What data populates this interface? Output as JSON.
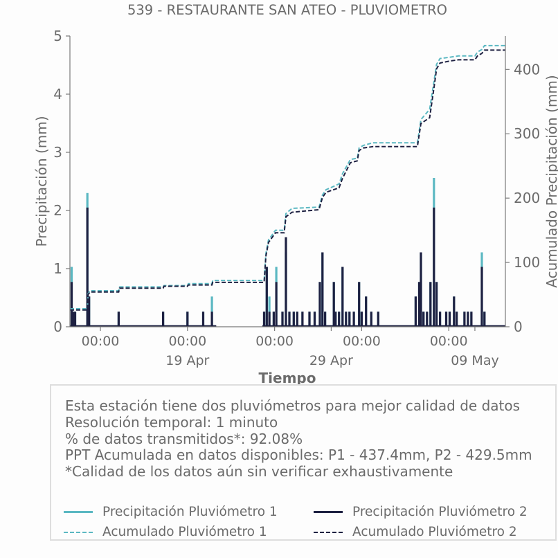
{
  "chart_data": {
    "type": "bar",
    "title": "539 - RESTAURANTE SAN ATEO - PLUVIOMETRO",
    "xlabel": "Tiempo",
    "ylabel_left": "Precipitación (mm)",
    "ylabel_right": "Acumulado Precipitación (mm)",
    "ylim_left": [
      0,
      5
    ],
    "ylim_right": [
      0,
      452
    ],
    "yticks_left": [
      "0",
      "1",
      "2",
      "3",
      "4",
      "5"
    ],
    "yticks_right": [
      "0",
      "100",
      "200",
      "300",
      "400"
    ],
    "yticks_right_values": [
      0,
      100,
      200,
      300,
      400
    ],
    "x_range_days": [
      0,
      50
    ],
    "x_major_ticks": [
      {
        "day": 3.5,
        "label": "00:00"
      },
      {
        "day": 13.5,
        "label": "00:00"
      },
      {
        "day": 23.5,
        "label": "00:00"
      },
      {
        "day": 33.5,
        "label": "00:00"
      },
      {
        "day": 43.5,
        "label": "00:00"
      }
    ],
    "x_date_ticks": [
      {
        "day": 13.5,
        "label": "19 Apr"
      },
      {
        "day": 30.0,
        "label": "29 Apr"
      },
      {
        "day": 46.5,
        "label": "09 May"
      }
    ],
    "x_minor_ticks": [
      3.5,
      13.5,
      23.5,
      30.0,
      33.5,
      43.5,
      46.5
    ],
    "grid": false,
    "legend_position": "bottom",
    "series": [
      {
        "name": "Precipitación Pluviómetro 1",
        "kind": "bar",
        "axis": "left",
        "color": "#5bb8c2",
        "points": [
          [
            0.2,
            1.03
          ],
          [
            0.4,
            0.26
          ],
          [
            0.6,
            0.26
          ],
          [
            2.0,
            2.3
          ],
          [
            2.2,
            0.52
          ],
          [
            5.6,
            0.26
          ],
          [
            10.7,
            0.26
          ],
          [
            13.5,
            0.26
          ],
          [
            15.3,
            0.26
          ],
          [
            16.3,
            0.52
          ],
          [
            22.3,
            0.26
          ],
          [
            22.6,
            1.03
          ],
          [
            22.9,
            0.52
          ],
          [
            23.4,
            0.26
          ],
          [
            23.7,
            1.03
          ],
          [
            24.4,
            0.26
          ],
          [
            24.8,
            1.28
          ],
          [
            25.2,
            0.26
          ],
          [
            25.7,
            0.26
          ],
          [
            26.1,
            0.26
          ],
          [
            26.7,
            0.26
          ],
          [
            27.5,
            0.26
          ],
          [
            28.1,
            0.26
          ],
          [
            28.7,
            0.77
          ],
          [
            29.0,
            1.28
          ],
          [
            29.3,
            0.26
          ],
          [
            30.3,
            0.77
          ],
          [
            30.5,
            0.26
          ],
          [
            30.9,
            0.26
          ],
          [
            31.3,
            1.03
          ],
          [
            31.7,
            0.26
          ],
          [
            32.1,
            0.26
          ],
          [
            32.6,
            0.26
          ],
          [
            33.2,
            0.77
          ],
          [
            33.5,
            0.26
          ],
          [
            34.0,
            0.52
          ],
          [
            34.6,
            0.26
          ],
          [
            35.4,
            0.26
          ],
          [
            39.7,
            0.52
          ],
          [
            40.1,
            0.77
          ],
          [
            40.3,
            1.28
          ],
          [
            40.6,
            0.26
          ],
          [
            41.0,
            0.26
          ],
          [
            41.4,
            0.77
          ],
          [
            41.8,
            2.56
          ],
          [
            42.1,
            0.77
          ],
          [
            42.5,
            0.26
          ],
          [
            43.2,
            0.26
          ],
          [
            43.6,
            0.26
          ],
          [
            44.1,
            0.52
          ],
          [
            44.4,
            0.26
          ],
          [
            45.3,
            0.26
          ],
          [
            45.7,
            0.26
          ],
          [
            46.1,
            0.26
          ],
          [
            47.3,
            1.28
          ],
          [
            47.6,
            0.26
          ]
        ]
      },
      {
        "name": "Precipitación Pluviómetro 2",
        "kind": "bar",
        "axis": "left",
        "color": "#1e2142",
        "points": [
          [
            0.2,
            0.77
          ],
          [
            0.4,
            0.26
          ],
          [
            0.6,
            0.26
          ],
          [
            2.0,
            2.05
          ],
          [
            2.2,
            0.52
          ],
          [
            5.6,
            0.26
          ],
          [
            10.7,
            0.26
          ],
          [
            13.5,
            0.26
          ],
          [
            15.3,
            0.26
          ],
          [
            16.3,
            0.26
          ],
          [
            22.3,
            0.26
          ],
          [
            22.6,
            1.03
          ],
          [
            22.9,
            0.26
          ],
          [
            23.4,
            0.26
          ],
          [
            23.7,
            0.77
          ],
          [
            24.4,
            0.26
          ],
          [
            24.8,
            1.54
          ],
          [
            25.2,
            0.26
          ],
          [
            25.7,
            0.26
          ],
          [
            26.1,
            0.26
          ],
          [
            26.7,
            0.26
          ],
          [
            27.5,
            0.26
          ],
          [
            28.1,
            0.26
          ],
          [
            28.7,
            0.77
          ],
          [
            29.0,
            1.28
          ],
          [
            29.3,
            0.26
          ],
          [
            30.3,
            0.77
          ],
          [
            30.5,
            0.26
          ],
          [
            30.9,
            0.26
          ],
          [
            31.3,
            1.03
          ],
          [
            31.7,
            0.26
          ],
          [
            32.1,
            0.26
          ],
          [
            32.6,
            0.26
          ],
          [
            33.2,
            0.77
          ],
          [
            33.5,
            0.26
          ],
          [
            34.0,
            0.52
          ],
          [
            34.6,
            0.26
          ],
          [
            35.4,
            0.26
          ],
          [
            39.7,
            0.52
          ],
          [
            40.1,
            0.77
          ],
          [
            40.3,
            1.28
          ],
          [
            40.6,
            0.26
          ],
          [
            41.0,
            0.26
          ],
          [
            41.4,
            0.77
          ],
          [
            41.8,
            2.05
          ],
          [
            42.1,
            0.77
          ],
          [
            42.5,
            0.26
          ],
          [
            43.2,
            0.26
          ],
          [
            43.6,
            0.26
          ],
          [
            44.1,
            0.52
          ],
          [
            44.4,
            0.26
          ],
          [
            45.3,
            0.26
          ],
          [
            45.7,
            0.26
          ],
          [
            46.1,
            0.26
          ],
          [
            47.3,
            1.03
          ],
          [
            47.6,
            0.26
          ]
        ]
      },
      {
        "name": "Acumulado Pluviómetro 1",
        "kind": "step",
        "axis": "right",
        "color": "#5bb8c2",
        "dashed": true,
        "points": [
          [
            0,
            28
          ],
          [
            2.0,
            28
          ],
          [
            2.1,
            52
          ],
          [
            2.3,
            56
          ],
          [
            5.6,
            56
          ],
          [
            5.7,
            62
          ],
          [
            10.7,
            62
          ],
          [
            10.8,
            64
          ],
          [
            13.5,
            64
          ],
          [
            13.6,
            67
          ],
          [
            16.3,
            67
          ],
          [
            16.4,
            72
          ],
          [
            22.3,
            72
          ],
          [
            22.5,
            114
          ],
          [
            22.8,
            135
          ],
          [
            23.6,
            150
          ],
          [
            24.6,
            150
          ],
          [
            24.8,
            176
          ],
          [
            25.5,
            184
          ],
          [
            28.6,
            186
          ],
          [
            29.0,
            205
          ],
          [
            29.4,
            213
          ],
          [
            30.9,
            222
          ],
          [
            31.3,
            238
          ],
          [
            32.2,
            260
          ],
          [
            33.0,
            262
          ],
          [
            33.2,
            278
          ],
          [
            33.7,
            282
          ],
          [
            34.8,
            286
          ],
          [
            39.9,
            286
          ],
          [
            40.3,
            322
          ],
          [
            41.3,
            338
          ],
          [
            41.8,
            381
          ],
          [
            42.1,
            408
          ],
          [
            42.5,
            417
          ],
          [
            43.6,
            419
          ],
          [
            44.6,
            421
          ],
          [
            46.5,
            421
          ],
          [
            46.8,
            427
          ],
          [
            47.3,
            431
          ],
          [
            47.6,
            437
          ],
          [
            50.0,
            437
          ]
        ]
      },
      {
        "name": "Acumulado Pluviómetro 2",
        "kind": "step",
        "axis": "right",
        "color": "#1e2142",
        "dashed": true,
        "points": [
          [
            0,
            26
          ],
          [
            2.0,
            26
          ],
          [
            2.1,
            50
          ],
          [
            2.3,
            54
          ],
          [
            5.6,
            54
          ],
          [
            5.7,
            60
          ],
          [
            10.7,
            60
          ],
          [
            10.8,
            63
          ],
          [
            13.5,
            63
          ],
          [
            13.6,
            65
          ],
          [
            16.3,
            65
          ],
          [
            16.4,
            69
          ],
          [
            22.3,
            69
          ],
          [
            22.5,
            110
          ],
          [
            22.8,
            131
          ],
          [
            23.6,
            146
          ],
          [
            24.6,
            146
          ],
          [
            24.8,
            171
          ],
          [
            25.5,
            178
          ],
          [
            28.6,
            182
          ],
          [
            29.0,
            201
          ],
          [
            29.4,
            209
          ],
          [
            30.9,
            216
          ],
          [
            31.3,
            231
          ],
          [
            32.2,
            255
          ],
          [
            33.0,
            258
          ],
          [
            33.2,
            274
          ],
          [
            33.7,
            278
          ],
          [
            34.8,
            280
          ],
          [
            39.9,
            280
          ],
          [
            40.3,
            316
          ],
          [
            41.3,
            325
          ],
          [
            41.8,
            371
          ],
          [
            42.1,
            401
          ],
          [
            42.5,
            410
          ],
          [
            43.6,
            413
          ],
          [
            44.6,
            415
          ],
          [
            46.5,
            415
          ],
          [
            46.8,
            421
          ],
          [
            47.3,
            425
          ],
          [
            47.6,
            430
          ],
          [
            50.0,
            430
          ]
        ]
      }
    ]
  },
  "info": {
    "lines": [
      "Esta estación tiene dos pluviómetros para mejor calidad de datos",
      "Resolución temporal: 1 minuto",
      "% de datos transmitidos*: 92.08%",
      "PPT Acumulada en datos disponibles: P1 - 437.4mm, P2 - 429.5mm",
      "*Calidad de los datos aún sin verificar exhaustivamente"
    ]
  },
  "legend": {
    "p1_precip": "Precipitación Pluviómetro 1",
    "p2_precip": "Precipitación Pluviómetro 2",
    "p1_acum": "Acumulado Pluviómetro 1",
    "p2_acum": "Acumulado Pluviómetro 2"
  },
  "colors": {
    "p1": "#5bb8c2",
    "p2": "#1e2142",
    "text": "#6b6b6b",
    "axis": "#7a7a7a"
  }
}
